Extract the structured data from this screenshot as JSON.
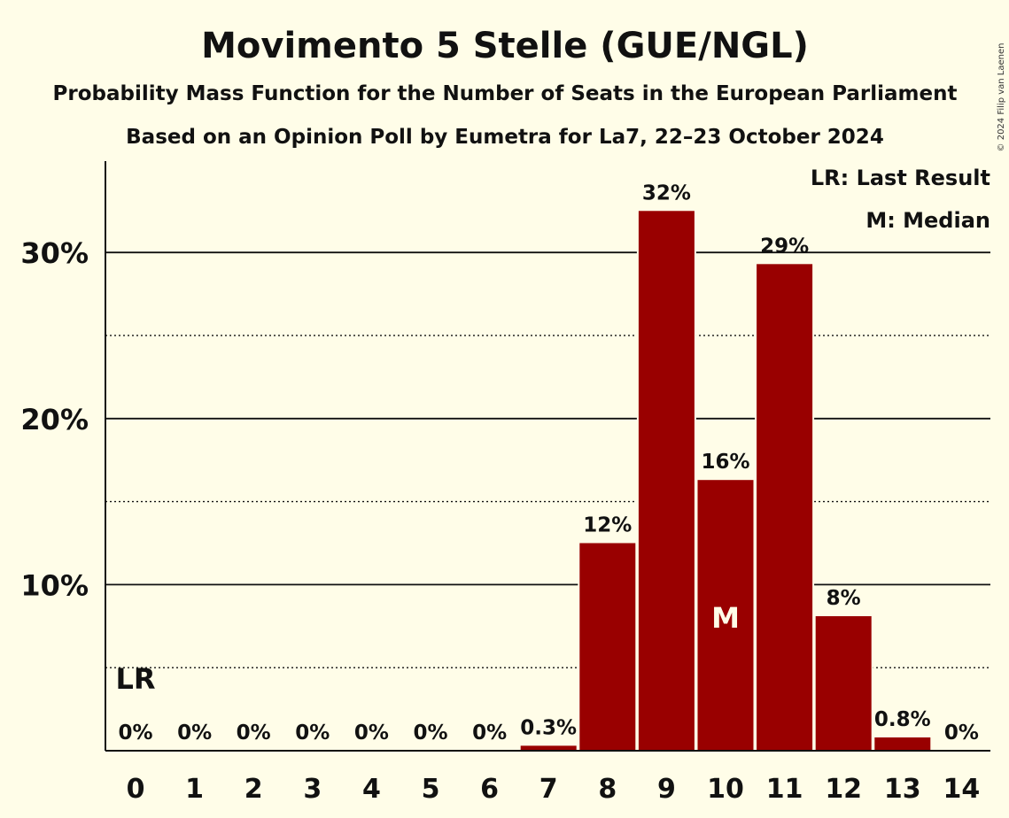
{
  "chart_data": {
    "type": "bar",
    "title": "Movimento 5 Stelle (GUE/NGL)",
    "subtitle": "Probability Mass Function for the Number of Seats in the European Parliament",
    "subtitle2": "Based on an Opinion Poll by Eumetra for La7, 22–23 October 2024",
    "categories": [
      "0",
      "1",
      "2",
      "3",
      "4",
      "5",
      "6",
      "7",
      "8",
      "9",
      "10",
      "11",
      "12",
      "13",
      "14"
    ],
    "values": [
      0,
      0,
      0,
      0,
      0,
      0,
      0,
      0.3,
      12.5,
      32.5,
      16.3,
      29.3,
      8.1,
      0.8,
      0
    ],
    "data_labels": [
      "0%",
      "0%",
      "0%",
      "0%",
      "0%",
      "0%",
      "0%",
      "0.3%",
      "12%",
      "32%",
      "16%",
      "29%",
      "8%",
      "0.8%",
      "0%"
    ],
    "y_ticks": [
      {
        "value": 10,
        "label": "10%"
      },
      {
        "value": 20,
        "label": "20%"
      },
      {
        "value": 30,
        "label": "30%"
      }
    ],
    "y_minor_ticks": [
      5,
      15,
      25
    ],
    "ylim": [
      0,
      35.5
    ],
    "xlabel": "",
    "ylabel": "",
    "bar_color": "#990000",
    "median_index": 10,
    "median_label": "M",
    "last_result_index": 0,
    "last_result_label": "LR",
    "legend": {
      "position": "top-right",
      "entries": [
        "LR: Last Result",
        "M: Median"
      ]
    }
  },
  "copyright": "© 2024 Filip van Laenen"
}
